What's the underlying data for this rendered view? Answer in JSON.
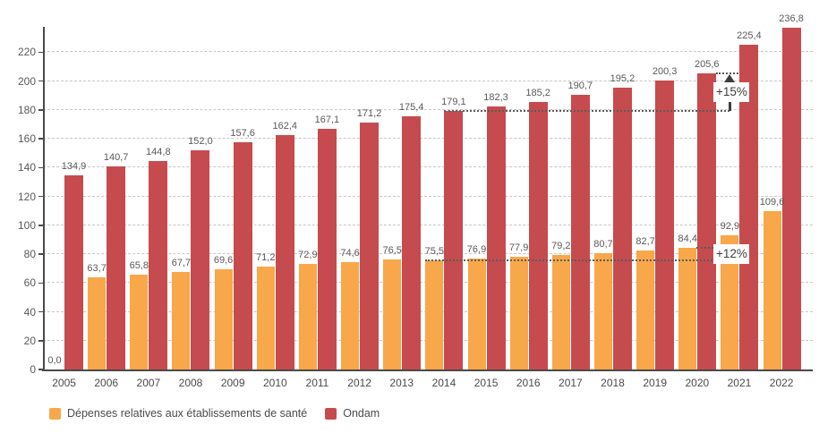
{
  "chart_data": {
    "type": "bar",
    "title": "",
    "categories": [
      "2005",
      "2006",
      "2007",
      "2008",
      "2009",
      "2010",
      "2011",
      "2012",
      "2013",
      "2014",
      "2015",
      "2016",
      "2017",
      "2018",
      "2019",
      "2020",
      "2021",
      "2022"
    ],
    "series": [
      {
        "name": "Dépenses relatives aux établissements de santé",
        "color": "#F8A74B",
        "values": [
          0.0,
          63.7,
          65.8,
          67.7,
          69.6,
          71.2,
          72.9,
          74.6,
          76.5,
          75.5,
          76.9,
          77.9,
          79.2,
          80.7,
          82.7,
          84.4,
          92.9,
          109.6
        ],
        "labels": [
          "0,0",
          "63,7",
          "65,8",
          "67,7",
          "69,6",
          "71,2",
          "72,9",
          "74,6",
          "76,5",
          "75,5",
          "76,9",
          "77,9",
          "79,2",
          "80,7",
          "82,7",
          "84,4",
          "92,9",
          "109,6"
        ]
      },
      {
        "name": "Ondam",
        "color": "#C64B4F",
        "values": [
          134.9,
          140.7,
          144.8,
          152.0,
          157.6,
          162.4,
          167.1,
          171.2,
          175.4,
          179.1,
          182.3,
          185.2,
          190.7,
          195.2,
          200.3,
          205.6,
          225.4,
          236.8
        ],
        "labels": [
          "134,9",
          "140,7",
          "144,8",
          "152,0",
          "157,6",
          "162,4",
          "167,1",
          "171,2",
          "175,4",
          "179,1",
          "182,3",
          "185,2",
          "190,7",
          "195,2",
          "200,3",
          "205,6",
          "225,4",
          "236,8"
        ]
      }
    ],
    "y_axis": {
      "min": 0,
      "max": 236.8,
      "ticks": [
        0,
        20,
        40,
        60,
        80,
        100,
        120,
        140,
        160,
        180,
        200,
        220
      ]
    },
    "grid": "horizontal-dashed",
    "legend_position": "bottom-left",
    "value_label_decimal_separator": ",",
    "annotations": [
      {
        "label": "+15%",
        "series_index": 1,
        "from_year": "2014",
        "from_value": 179.1,
        "to_year": "2020",
        "to_value": 205.6,
        "arrow": true
      },
      {
        "label": "+12%",
        "series_index": 0,
        "from_year": "2014",
        "from_value": 75.5,
        "to_year": "2020",
        "to_value": 84.4,
        "arrow": false
      }
    ]
  },
  "colors": {
    "background": "#FFFFFF",
    "axis": "#4A4A4A",
    "gridline": "#C6C6C6",
    "value_label": "#595959",
    "annotation": "#3D3D3D"
  }
}
